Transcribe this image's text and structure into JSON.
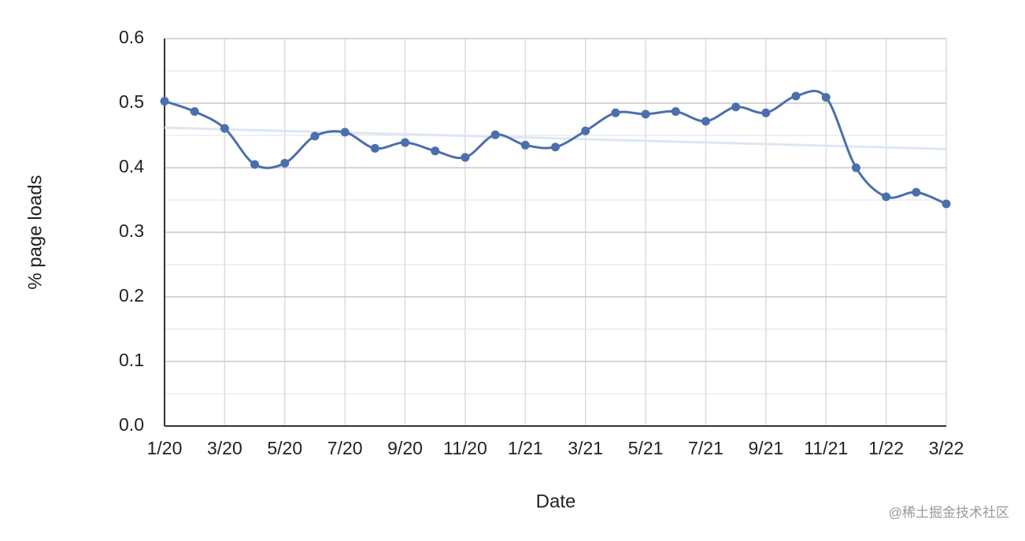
{
  "chart_data": {
    "type": "line",
    "x_label": "Date",
    "y_label": "% page loads",
    "categories": [
      "1/20",
      null,
      "3/20",
      null,
      "5/20",
      null,
      "7/20",
      null,
      "9/20",
      null,
      "11/20",
      null,
      "1/21",
      null,
      "3/21",
      null,
      "5/21",
      null,
      "7/21",
      null,
      "9/21",
      null,
      "11/21",
      null,
      "1/22",
      null,
      "3/22"
    ],
    "series": [
      {
        "color": "#4a6fac",
        "values": [
          0.503,
          0.487,
          0.461,
          0.405,
          0.407,
          0.449,
          0.455,
          0.43,
          0.439,
          0.426,
          0.416,
          0.451,
          0.435,
          0.432,
          0.457,
          0.485,
          0.483,
          0.487,
          0.472,
          0.494,
          0.485,
          0.511,
          0.509,
          0.4,
          0.355,
          0.362,
          0.344
        ]
      }
    ],
    "trendline": {
      "color": "#dce7f3",
      "values": [
        0.462,
        0.429
      ]
    },
    "ylim": [
      0,
      0.6
    ],
    "yticks": [
      {
        "value": 0,
        "label": "0.0"
      },
      0.1,
      0.2,
      0.3,
      0.4,
      0.5,
      0.6
    ],
    "grid": true,
    "watermark": "@稀土掘金技术社区"
  }
}
